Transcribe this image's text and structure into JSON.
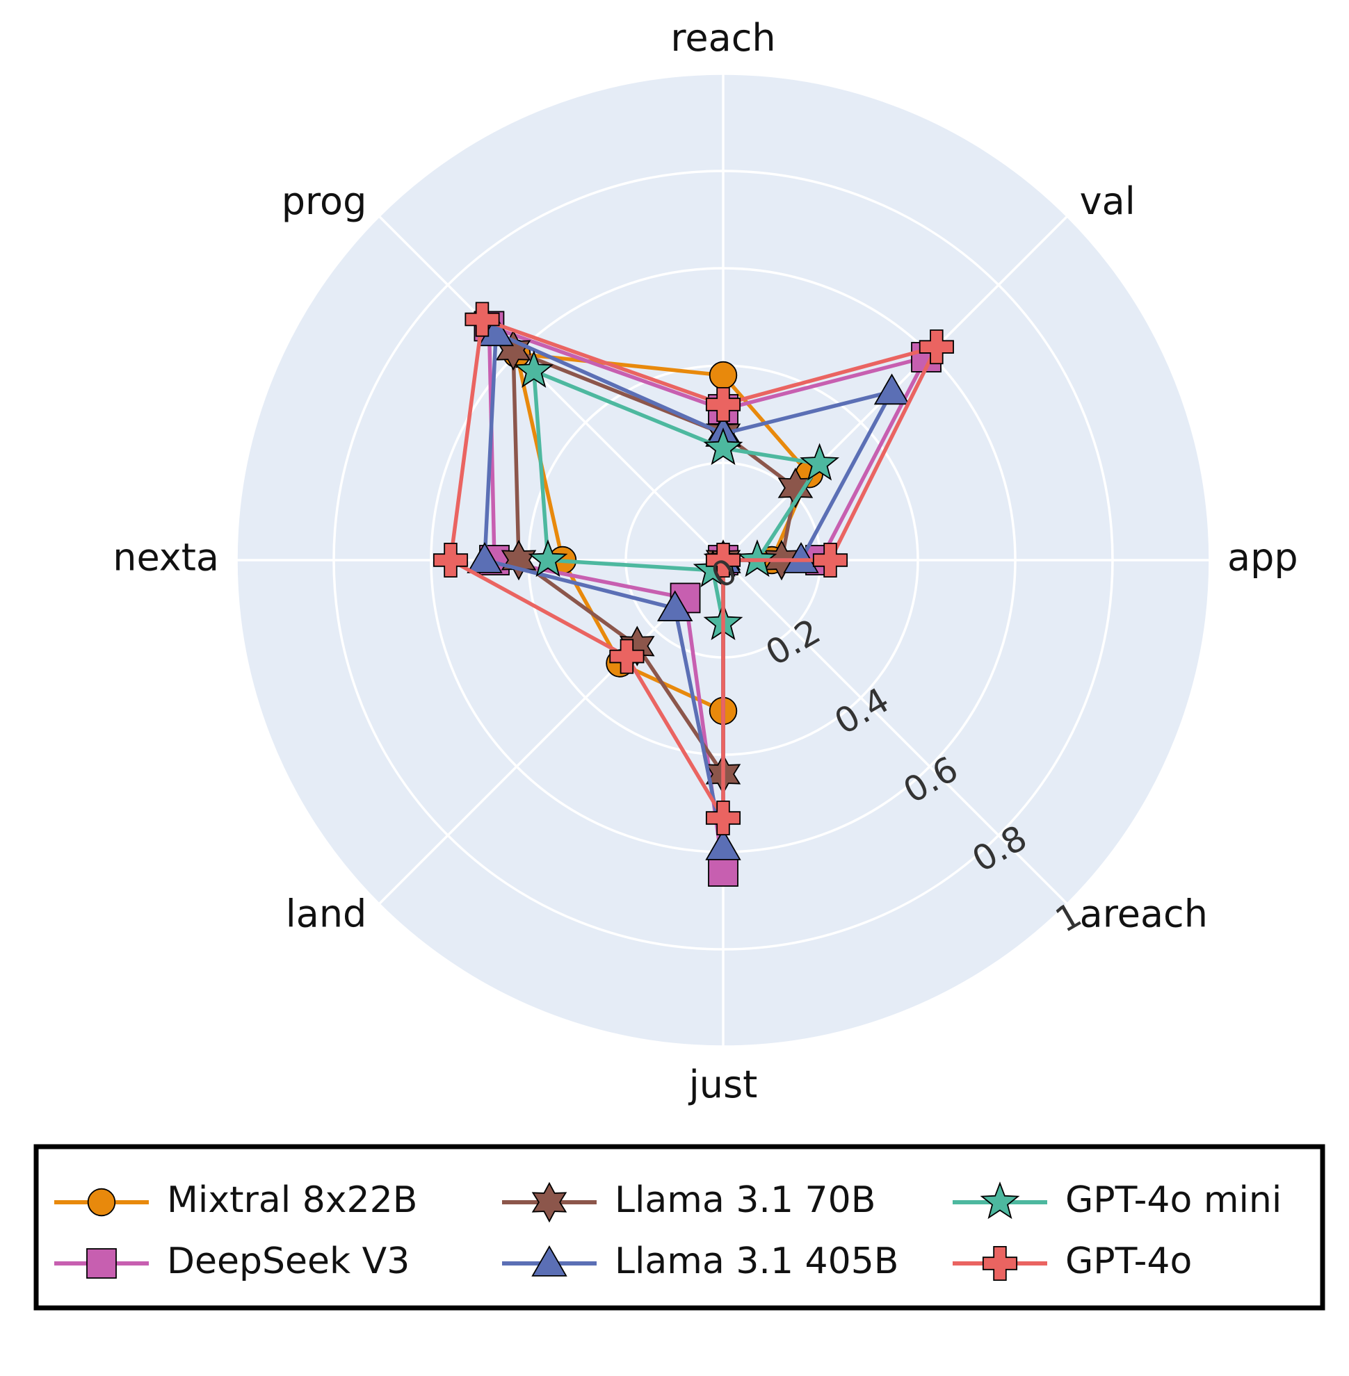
{
  "chart_data": {
    "type": "radar",
    "title": "",
    "axes": [
      "app",
      "areach",
      "just",
      "land",
      "nexta",
      "prog",
      "reach",
      "val"
    ],
    "radial_range": [
      0,
      1
    ],
    "radial_ticks": [
      "0",
      "0.2",
      "0.4",
      "0.6",
      "0.8",
      "1"
    ],
    "legend_position": "bottom",
    "grid": true,
    "background_color": "#E5ECF6",
    "series": [
      {
        "name": "Mixtral 8x22B",
        "color": "#E8890C",
        "marker": "circle",
        "values": [
          0.1,
          0.0,
          0.31,
          0.3,
          0.33,
          0.6,
          0.38,
          0.25
        ]
      },
      {
        "name": "DeepSeek V3",
        "color": "#C75FB0",
        "marker": "square",
        "values": [
          0.2,
          0.0,
          0.64,
          0.11,
          0.47,
          0.68,
          0.31,
          0.59
        ]
      },
      {
        "name": "Llama 3.1 70B",
        "color": "#8C564B",
        "marker": "star6",
        "values": [
          0.12,
          0.0,
          0.44,
          0.25,
          0.42,
          0.61,
          0.26,
          0.21
        ]
      },
      {
        "name": "Llama 3.1 405B",
        "color": "#5B6FB5",
        "marker": "triangle",
        "values": [
          0.16,
          0.0,
          0.59,
          0.14,
          0.49,
          0.66,
          0.26,
          0.49
        ]
      },
      {
        "name": "GPT-4o mini",
        "color": "#4DB89F",
        "marker": "star5",
        "values": [
          0.07,
          0.0,
          0.13,
          0.03,
          0.36,
          0.55,
          0.23,
          0.28
        ]
      },
      {
        "name": "GPT-4o",
        "color": "#EA6461",
        "marker": "cross",
        "values": [
          0.22,
          0.0,
          0.53,
          0.28,
          0.56,
          0.7,
          0.32,
          0.62
        ]
      }
    ]
  }
}
